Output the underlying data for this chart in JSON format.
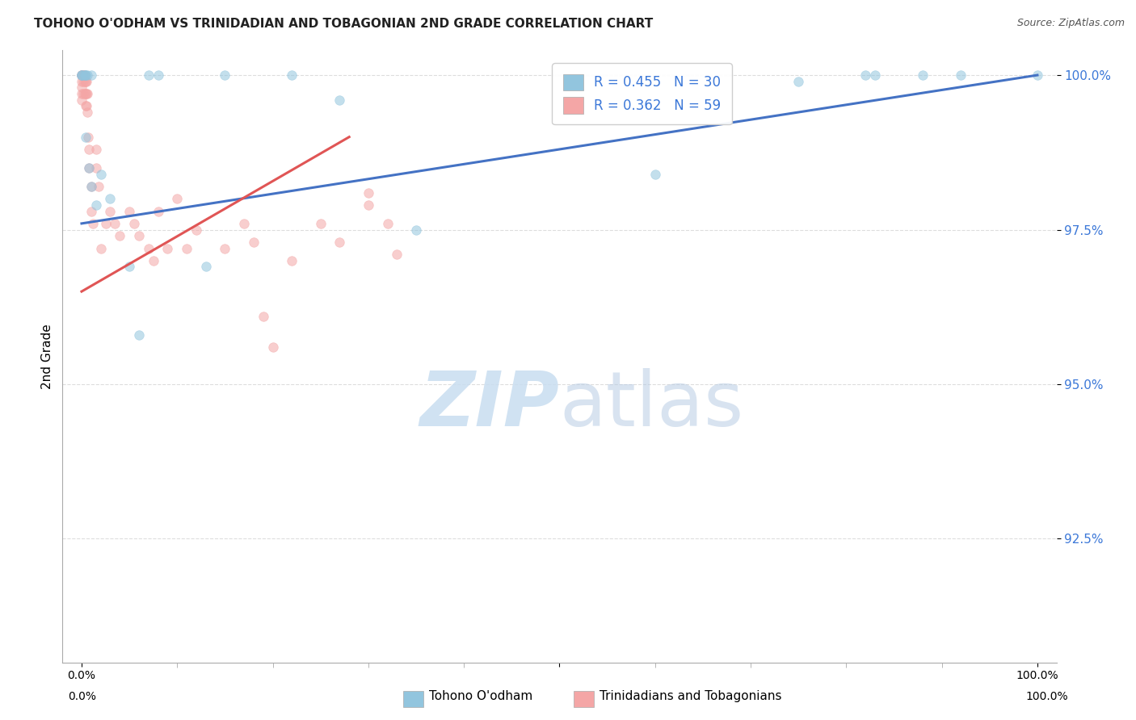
{
  "title": "TOHONO O'ODHAM VS TRINIDADIAN AND TOBAGONIAN 2ND GRADE CORRELATION CHART",
  "source": "Source: ZipAtlas.com",
  "ylabel": "2nd Grade",
  "blue_color": "#92c5de",
  "pink_color": "#f4a6a6",
  "blue_line_color": "#4472c4",
  "pink_line_color": "#e05555",
  "legend_text_color": "#3c78d8",
  "legend_blue_label": "R = 0.455   N = 30",
  "legend_pink_label": "R = 0.362   N = 59",
  "watermark_zip": "ZIP",
  "watermark_atlas": "atlas",
  "background_color": "#ffffff",
  "grid_color": "#dddddd",
  "xlim": [
    -0.02,
    1.02
  ],
  "ylim": [
    0.905,
    1.004
  ],
  "yticks": [
    0.925,
    0.95,
    0.975,
    1.0
  ],
  "ytick_labels": [
    "92.5%",
    "95.0%",
    "97.5%",
    "100.0%"
  ],
  "xtick_positions": [
    0.0,
    0.5,
    1.0
  ],
  "xtick_labels": [
    "0.0%",
    "",
    "100.0%"
  ],
  "blue_scatter_x": [
    0.0,
    0.0,
    0.0,
    0.003,
    0.003,
    0.004,
    0.004,
    0.006,
    0.008,
    0.01,
    0.01,
    0.015,
    0.02,
    0.03,
    0.05,
    0.06,
    0.07,
    0.08,
    0.13,
    0.15,
    0.22,
    0.27,
    0.35,
    0.6,
    0.75,
    0.82,
    0.83,
    0.88,
    0.92,
    1.0
  ],
  "blue_scatter_y": [
    1.0,
    1.0,
    1.0,
    1.0,
    1.0,
    1.0,
    0.99,
    1.0,
    0.985,
    0.982,
    1.0,
    0.979,
    0.984,
    0.98,
    0.969,
    0.958,
    1.0,
    1.0,
    0.969,
    1.0,
    1.0,
    0.996,
    0.975,
    0.984,
    0.999,
    1.0,
    1.0,
    1.0,
    1.0,
    1.0
  ],
  "pink_scatter_x": [
    0.0,
    0.0,
    0.0,
    0.0,
    0.0,
    0.0,
    0.0,
    0.0,
    0.002,
    0.002,
    0.002,
    0.002,
    0.003,
    0.003,
    0.003,
    0.004,
    0.004,
    0.004,
    0.005,
    0.005,
    0.005,
    0.006,
    0.006,
    0.007,
    0.008,
    0.008,
    0.01,
    0.01,
    0.012,
    0.015,
    0.015,
    0.018,
    0.02,
    0.025,
    0.03,
    0.035,
    0.04,
    0.05,
    0.055,
    0.06,
    0.07,
    0.075,
    0.08,
    0.09,
    0.1,
    0.11,
    0.12,
    0.15,
    0.17,
    0.18,
    0.19,
    0.2,
    0.22,
    0.25,
    0.27,
    0.3,
    0.3,
    0.32,
    0.33
  ],
  "pink_scatter_y": [
    1.0,
    1.0,
    1.0,
    1.0,
    0.999,
    0.998,
    0.997,
    0.996,
    1.0,
    1.0,
    0.999,
    0.997,
    1.0,
    0.999,
    0.997,
    0.999,
    0.997,
    0.995,
    0.999,
    0.997,
    0.995,
    0.997,
    0.994,
    0.99,
    0.988,
    0.985,
    0.982,
    0.978,
    0.976,
    0.988,
    0.985,
    0.982,
    0.972,
    0.976,
    0.978,
    0.976,
    0.974,
    0.978,
    0.976,
    0.974,
    0.972,
    0.97,
    0.978,
    0.972,
    0.98,
    0.972,
    0.975,
    0.972,
    0.976,
    0.973,
    0.961,
    0.956,
    0.97,
    0.976,
    0.973,
    0.981,
    0.979,
    0.976,
    0.971
  ],
  "blue_line_x0": 0.0,
  "blue_line_x1": 1.0,
  "blue_line_y0": 0.976,
  "blue_line_y1": 1.0,
  "pink_line_x0": 0.0,
  "pink_line_x1": 0.28,
  "pink_line_y0": 0.965,
  "pink_line_y1": 0.99,
  "marker_size": 70,
  "marker_alpha": 0.55
}
